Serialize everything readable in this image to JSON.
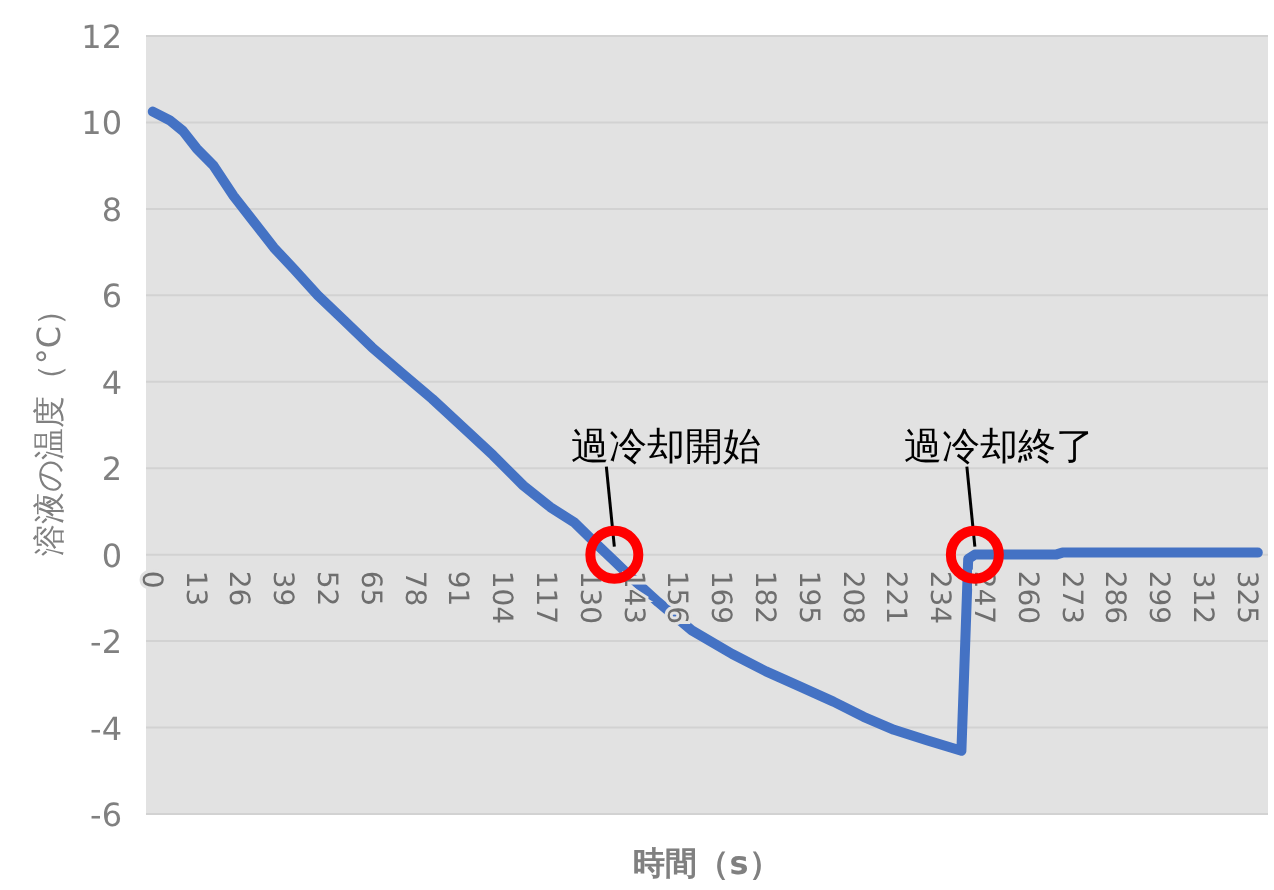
{
  "chart_data": {
    "type": "line",
    "xlabel": "時間（s）",
    "ylabel": "溶液の温度（°C）",
    "color": "#4472c4",
    "grid": "y",
    "xlim": [
      -2,
      331
    ],
    "xticks": [
      0,
      13,
      26,
      39,
      52,
      65,
      78,
      91,
      104,
      117,
      130,
      143,
      156,
      169,
      182,
      195,
      208,
      221,
      234,
      247,
      260,
      273,
      286,
      299,
      312,
      325
    ],
    "ylim": [
      -6,
      12
    ],
    "yticks": [
      -6,
      -4,
      -2,
      0,
      2,
      4,
      6,
      8,
      10,
      12
    ],
    "x": [
      0,
      5,
      9,
      13,
      18,
      24,
      30,
      36,
      42,
      49,
      57,
      65,
      74,
      83,
      92,
      101,
      110,
      118,
      125,
      131,
      137,
      143,
      150,
      160,
      172,
      182,
      192,
      202,
      211,
      220,
      230,
      240,
      242,
      244,
      255,
      268,
      270,
      328
    ],
    "values": [
      10.25,
      10.05,
      9.8,
      9.4,
      9.0,
      8.3,
      7.7,
      7.1,
      6.6,
      6.0,
      5.4,
      4.8,
      4.2,
      3.6,
      2.95,
      2.3,
      1.6,
      1.1,
      0.75,
      0.3,
      -0.15,
      -0.6,
      -1.1,
      -1.75,
      -2.3,
      -2.7,
      -3.05,
      -3.4,
      -3.75,
      -4.05,
      -4.3,
      -4.54,
      -0.1,
      0,
      0,
      0,
      0.05,
      0.05
    ],
    "annotations": [
      {
        "text": "過冷却開始",
        "x": 137,
        "y": 0
      },
      {
        "text": "過冷却終了",
        "x": 244,
        "y": 0
      }
    ]
  }
}
